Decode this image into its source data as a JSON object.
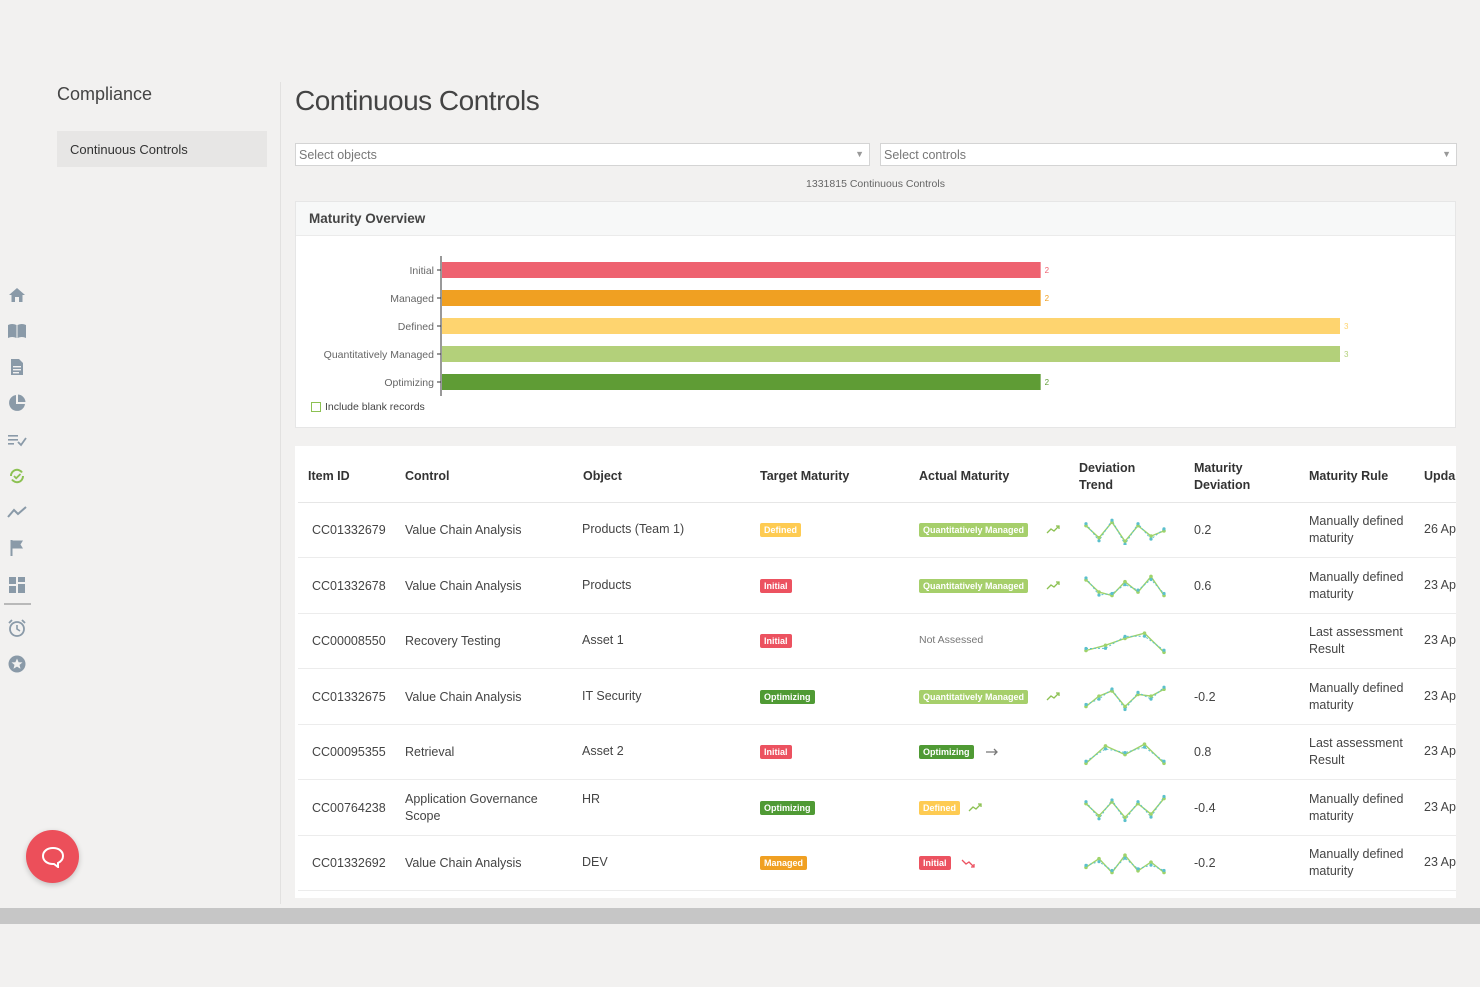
{
  "nav": {
    "title": "Compliance",
    "items": [
      {
        "label": "Continuous Controls",
        "active": true
      }
    ]
  },
  "rail_icons": [
    "home-icon",
    "book-icon",
    "document-icon",
    "pie-chart-icon",
    "checklist-icon",
    "sync-check-icon",
    "trend-icon",
    "flag-icon",
    "dashboard-icon",
    "alarm-icon",
    "star-icon"
  ],
  "page": {
    "title": "Continuous Controls"
  },
  "filters": {
    "objects_placeholder": "Select objects",
    "controls_placeholder": "Select controls"
  },
  "count_text": "1331815 Continuous Controls",
  "overview": {
    "title": "Maturity Overview",
    "include_blank_label": "Include blank records",
    "chart_data": {
      "type": "bar",
      "orientation": "horizontal",
      "categories": [
        "Initial",
        "Managed",
        "Defined",
        "Quantitatively Managed",
        "Optimizing"
      ],
      "values": [
        2,
        2,
        3,
        3,
        2
      ],
      "value_labels": [
        "2",
        "2",
        "3",
        "3",
        "2"
      ],
      "colors": [
        "#ee6270",
        "#f0a022",
        "#fed46f",
        "#b3d07a",
        "#5f9c35"
      ],
      "xlim": [
        0,
        3
      ]
    }
  },
  "table": {
    "columns": [
      "Item ID",
      "Control",
      "Object",
      "Target Maturity",
      "Actual Maturity",
      "Deviation Trend",
      "Maturity Deviation",
      "Maturity Rule",
      "Upda"
    ],
    "rows": [
      {
        "id": "CC01332679",
        "control": "Value Chain Analysis",
        "object": "Products (Team 1)",
        "target": "Defined",
        "actual": "Quantitatively Managed",
        "trend": "up",
        "spark": [
          [
            0,
            5
          ],
          [
            1,
            12
          ],
          [
            2,
            3
          ],
          [
            3,
            14
          ],
          [
            4,
            5
          ],
          [
            5,
            11
          ],
          [
            6,
            8
          ]
        ],
        "deviation": "0.2",
        "rule": "Manually defined maturity",
        "updated": "26 Ap"
      },
      {
        "id": "CC01332678",
        "control": "Value Chain Analysis",
        "object": "Products",
        "target": "Initial",
        "actual": "Quantitatively Managed",
        "trend": "up",
        "spark": [
          [
            0,
            4
          ],
          [
            1,
            11
          ],
          [
            2,
            13
          ],
          [
            3,
            5
          ],
          [
            4,
            11
          ],
          [
            5,
            2
          ],
          [
            6,
            13
          ]
        ],
        "deviation": "0.6",
        "rule": "Manually defined maturity",
        "updated": "23 Ap"
      },
      {
        "id": "CC00008550",
        "control": "Recovery Testing",
        "object": "Asset 1",
        "target": "Initial",
        "actual": "Not Assessed",
        "trend": "none",
        "spark": [
          [
            0,
            13
          ],
          [
            1,
            10
          ],
          [
            2,
            6
          ],
          [
            3,
            3
          ],
          [
            4,
            14
          ]
        ],
        "deviation": "",
        "rule": "Last assessment Result",
        "updated": "23 Ap"
      },
      {
        "id": "CC01332675",
        "control": "Value Chain Analysis",
        "object": "IT Security",
        "target": "Optimizing",
        "actual": "Quantitatively Managed",
        "trend": "up",
        "spark": [
          [
            0,
            13
          ],
          [
            1,
            7
          ],
          [
            2,
            4
          ],
          [
            3,
            13
          ],
          [
            4,
            6
          ],
          [
            5,
            7
          ],
          [
            6,
            3
          ]
        ],
        "deviation": "-0.2",
        "rule": "Manually defined maturity",
        "updated": "23 Ap"
      },
      {
        "id": "CC00095355",
        "control": "Retrieval",
        "object": "Asset 2",
        "target": "Initial",
        "actual": "Optimizing",
        "trend": "flat",
        "spark": [
          [
            0,
            14
          ],
          [
            1,
            4
          ],
          [
            2,
            9
          ],
          [
            3,
            3
          ],
          [
            4,
            14
          ]
        ],
        "deviation": "0.8",
        "rule": "Last assessment Result",
        "updated": "23 Ap"
      },
      {
        "id": "CC00764238",
        "control": "Application Governance Scope",
        "object": "HR",
        "target": "Optimizing",
        "actual": "Defined",
        "trend": "up",
        "spark": [
          [
            0,
            5
          ],
          [
            1,
            12
          ],
          [
            2,
            4
          ],
          [
            3,
            13
          ],
          [
            4,
            5
          ],
          [
            5,
            11
          ],
          [
            6,
            2
          ]
        ],
        "deviation": "-0.4",
        "rule": "Manually defined maturity",
        "updated": "23 Ap"
      },
      {
        "id": "CC01332692",
        "control": "Value Chain Analysis",
        "object": "DEV",
        "target": "Managed",
        "actual": "Initial",
        "trend": "down",
        "spark": [
          [
            0,
            10
          ],
          [
            1,
            5
          ],
          [
            2,
            13
          ],
          [
            3,
            3
          ],
          [
            4,
            12
          ],
          [
            5,
            7
          ],
          [
            6,
            13
          ]
        ],
        "deviation": "-0.2",
        "rule": "Manually defined maturity",
        "updated": "23 Ap"
      }
    ]
  },
  "badge_colors": {
    "Initial": "#ec5260",
    "Managed": "#f0a022",
    "Defined": "#fecb52",
    "Quantitatively Managed": "#a6cf6b",
    "Optimizing": "#4f9a34"
  },
  "trend_colors": {
    "up": "#8cc152",
    "down": "#ec5260",
    "flat": "#777777"
  },
  "spark_colors": {
    "line_a": "#9fd36a",
    "line_b": "#5bc0cc"
  },
  "chat": {
    "icon": "chat-bubble-icon"
  }
}
